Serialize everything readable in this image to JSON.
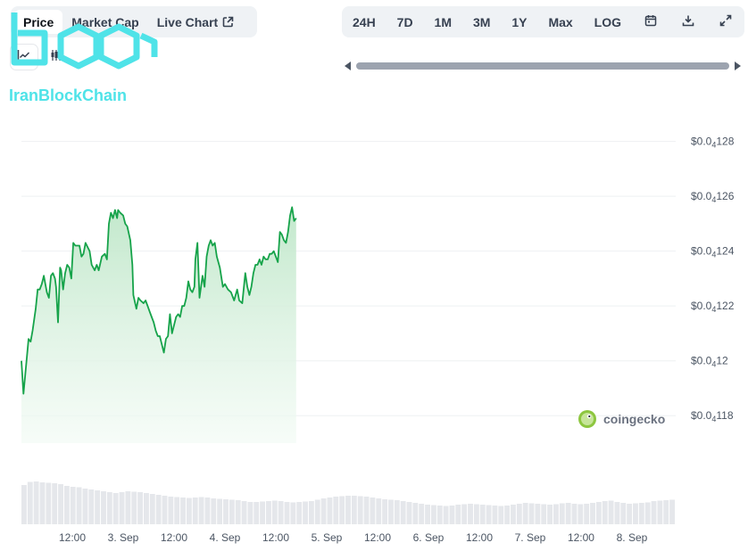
{
  "tabs": {
    "items": [
      {
        "label": "Price",
        "active": true
      },
      {
        "label": "Market Cap",
        "active": false
      },
      {
        "label": "Live Chart",
        "active": false
      }
    ]
  },
  "ranges": {
    "items": [
      "24H",
      "7D",
      "1M",
      "3M",
      "1Y",
      "Max",
      "LOG"
    ]
  },
  "watermark": {
    "text": "IranBlockChain",
    "color": "#4fe3e8"
  },
  "coingecko": {
    "text": "coingecko"
  },
  "colors": {
    "line": "#16a34a",
    "area_top": "#bfe7c9",
    "area_bottom": "#f3fbf5",
    "volume": "#e5e7eb",
    "grid": "#eef0f2",
    "axis_text": "#4b5563"
  },
  "chart_data": {
    "type": "area",
    "ylim": [
      0.04117,
      0.041288
    ],
    "y_ticks": [
      {
        "value": 0.04128,
        "lead": "$0.0",
        "sub": "4",
        "rest": "128"
      },
      {
        "value": 0.04126,
        "lead": "$0.0",
        "sub": "4",
        "rest": "126"
      },
      {
        "value": 0.04124,
        "lead": "$0.0",
        "sub": "4",
        "rest": "124"
      },
      {
        "value": 0.04122,
        "lead": "$0.0",
        "sub": "4",
        "rest": "122"
      },
      {
        "value": 0.0412,
        "lead": "$0.0",
        "sub": "4",
        "rest": "12"
      },
      {
        "value": 0.04118,
        "lead": "$0.0",
        "sub": "4",
        "rest": "118"
      }
    ],
    "x_range": [
      0,
      6.43
    ],
    "x_ticks": [
      {
        "pos": 0.5,
        "label": "12:00"
      },
      {
        "pos": 1.0,
        "label": "3. Sep"
      },
      {
        "pos": 1.5,
        "label": "12:00"
      },
      {
        "pos": 2.0,
        "label": "4. Sep"
      },
      {
        "pos": 2.5,
        "label": "12:00"
      },
      {
        "pos": 3.0,
        "label": "5. Sep"
      },
      {
        "pos": 3.5,
        "label": "12:00"
      },
      {
        "pos": 4.0,
        "label": "6. Sep"
      },
      {
        "pos": 4.5,
        "label": "12:00"
      },
      {
        "pos": 5.0,
        "label": "7. Sep"
      },
      {
        "pos": 5.5,
        "label": "12:00"
      },
      {
        "pos": 6.0,
        "label": "8. Sep"
      }
    ],
    "series": [
      {
        "points": [
          [
            0.0,
            0.0412
          ],
          [
            0.02,
            0.041188
          ],
          [
            0.07,
            0.041208
          ],
          [
            0.09,
            0.041207
          ],
          [
            0.11,
            0.041211
          ],
          [
            0.14,
            0.041219
          ],
          [
            0.16,
            0.041226
          ],
          [
            0.18,
            0.041226
          ],
          [
            0.2,
            0.041228
          ],
          [
            0.22,
            0.041231
          ],
          [
            0.25,
            0.041225
          ],
          [
            0.27,
            0.041223
          ],
          [
            0.29,
            0.041231
          ],
          [
            0.31,
            0.041232
          ],
          [
            0.33,
            0.04123
          ],
          [
            0.34,
            0.041227
          ],
          [
            0.36,
            0.041214
          ],
          [
            0.38,
            0.041234
          ],
          [
            0.39,
            0.041233
          ],
          [
            0.41,
            0.041226
          ],
          [
            0.43,
            0.041232
          ],
          [
            0.45,
            0.041235
          ],
          [
            0.47,
            0.041234
          ],
          [
            0.49,
            0.04123
          ],
          [
            0.51,
            0.041243
          ],
          [
            0.53,
            0.041242
          ],
          [
            0.57,
            0.041242
          ],
          [
            0.59,
            0.041238
          ],
          [
            0.61,
            0.041239
          ],
          [
            0.63,
            0.041243
          ],
          [
            0.67,
            0.04124
          ],
          [
            0.69,
            0.041235
          ],
          [
            0.72,
            0.041233
          ],
          [
            0.74,
            0.041235
          ],
          [
            0.76,
            0.041233
          ],
          [
            0.79,
            0.041238
          ],
          [
            0.82,
            0.041239
          ],
          [
            0.84,
            0.041237
          ],
          [
            0.86,
            0.04125
          ],
          [
            0.88,
            0.041254
          ],
          [
            0.9,
            0.041252
          ],
          [
            0.92,
            0.041255
          ],
          [
            0.94,
            0.041252
          ],
          [
            0.95,
            0.041255
          ],
          [
            0.97,
            0.041254
          ],
          [
            1.0,
            0.041253
          ],
          [
            1.02,
            0.04125
          ],
          [
            1.04,
            0.041249
          ],
          [
            1.07,
            0.041244
          ],
          [
            1.09,
            0.041235
          ],
          [
            1.1,
            0.041224
          ],
          [
            1.13,
            0.041219
          ],
          [
            1.15,
            0.041223
          ],
          [
            1.17,
            0.041222
          ],
          [
            1.2,
            0.041221
          ],
          [
            1.22,
            0.041222
          ],
          [
            1.24,
            0.04122
          ],
          [
            1.26,
            0.041218
          ],
          [
            1.28,
            0.041216
          ],
          [
            1.3,
            0.041214
          ],
          [
            1.32,
            0.041211
          ],
          [
            1.34,
            0.041209
          ],
          [
            1.36,
            0.041209
          ],
          [
            1.38,
            0.041206
          ],
          [
            1.4,
            0.041203
          ],
          [
            1.42,
            0.041208
          ],
          [
            1.44,
            0.041209
          ],
          [
            1.46,
            0.041217
          ],
          [
            1.48,
            0.04121
          ],
          [
            1.5,
            0.041213
          ],
          [
            1.52,
            0.041216
          ],
          [
            1.54,
            0.041217
          ],
          [
            1.56,
            0.041216
          ],
          [
            1.58,
            0.04122
          ],
          [
            1.6,
            0.04122
          ],
          [
            1.62,
            0.041223
          ],
          [
            1.64,
            0.041229
          ],
          [
            1.66,
            0.041226
          ],
          [
            1.68,
            0.041225
          ],
          [
            1.7,
            0.041227
          ],
          [
            1.71,
            0.041237
          ],
          [
            1.73,
            0.041243
          ],
          [
            1.75,
            0.041223
          ],
          [
            1.78,
            0.041231
          ],
          [
            1.8,
            0.041227
          ],
          [
            1.82,
            0.041238
          ],
          [
            1.84,
            0.041242
          ],
          [
            1.86,
            0.041244
          ],
          [
            1.88,
            0.041242
          ],
          [
            1.9,
            0.041243
          ],
          [
            1.92,
            0.041238
          ],
          [
            1.95,
            0.041234
          ],
          [
            1.98,
            0.041227
          ],
          [
            2.0,
            0.041228
          ],
          [
            2.03,
            0.041226
          ],
          [
            2.06,
            0.041225
          ],
          [
            2.09,
            0.041222
          ],
          [
            2.12,
            0.041226
          ],
          [
            2.14,
            0.041222
          ],
          [
            2.17,
            0.041221
          ],
          [
            2.2,
            0.041232
          ],
          [
            2.22,
            0.041227
          ],
          [
            2.24,
            0.041224
          ],
          [
            2.26,
            0.041227
          ],
          [
            2.28,
            0.041232
          ],
          [
            2.3,
            0.041235
          ],
          [
            2.32,
            0.041235
          ],
          [
            2.34,
            0.041237
          ],
          [
            2.36,
            0.041235
          ],
          [
            2.38,
            0.041238
          ],
          [
            2.4,
            0.041237
          ],
          [
            2.42,
            0.041237
          ],
          [
            2.44,
            0.041239
          ],
          [
            2.46,
            0.041239
          ],
          [
            2.48,
            0.04124
          ],
          [
            2.5,
            0.041238
          ],
          [
            2.52,
            0.041236
          ],
          [
            2.54,
            0.041247
          ],
          [
            2.56,
            0.041246
          ],
          [
            2.58,
            0.041244
          ],
          [
            2.6,
            0.041243
          ],
          [
            2.62,
            0.041247
          ],
          [
            2.64,
            0.041253
          ],
          [
            2.66,
            0.041256
          ],
          [
            2.68,
            0.041251
          ],
          [
            2.7,
            0.041252
          ]
        ]
      }
    ],
    "volume": [
      0.88,
      0.95,
      0.96,
      0.94,
      0.93,
      0.92,
      0.9,
      0.86,
      0.84,
      0.83,
      0.8,
      0.78,
      0.76,
      0.74,
      0.72,
      0.7,
      0.72,
      0.74,
      0.73,
      0.72,
      0.7,
      0.68,
      0.66,
      0.64,
      0.62,
      0.61,
      0.6,
      0.59,
      0.6,
      0.61,
      0.6,
      0.58,
      0.57,
      0.56,
      0.55,
      0.54,
      0.52,
      0.5,
      0.5,
      0.51,
      0.52,
      0.53,
      0.52,
      0.5,
      0.49,
      0.5,
      0.51,
      0.52,
      0.55,
      0.58,
      0.6,
      0.62,
      0.63,
      0.64,
      0.64,
      0.63,
      0.62,
      0.6,
      0.58,
      0.56,
      0.55,
      0.54,
      0.52,
      0.5,
      0.48,
      0.46,
      0.44,
      0.43,
      0.42,
      0.41,
      0.42,
      0.44,
      0.45,
      0.46,
      0.45,
      0.44,
      0.43,
      0.42,
      0.41,
      0.42,
      0.44,
      0.46,
      0.48,
      0.47,
      0.46,
      0.45,
      0.44,
      0.45,
      0.47,
      0.48,
      0.46,
      0.45,
      0.46,
      0.48,
      0.5,
      0.52,
      0.53,
      0.5,
      0.48,
      0.46,
      0.47,
      0.48,
      0.49,
      0.52,
      0.53,
      0.54,
      0.55
    ]
  }
}
